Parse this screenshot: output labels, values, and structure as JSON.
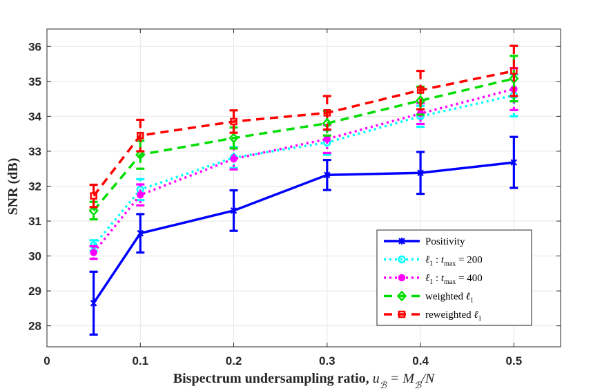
{
  "chart_data": {
    "type": "line",
    "title": "",
    "xlabel": "Bispectrum undersampling ratio,",
    "xlabel_math": "u_B = M_B/N",
    "ylabel": "SNR (dB)",
    "xlim": [
      0,
      0.55
    ],
    "ylim": [
      27.4,
      36.5
    ],
    "xticks": [
      0,
      0.1,
      0.2,
      0.3,
      0.4,
      0.5
    ],
    "xtick_labels": [
      "0",
      "0.1",
      "0.2",
      "0.3",
      "0.4",
      "0.5"
    ],
    "yticks": [
      28,
      29,
      30,
      31,
      32,
      33,
      34,
      35,
      36
    ],
    "ytick_labels": [
      "28",
      "29",
      "30",
      "31",
      "32",
      "33",
      "34",
      "35",
      "36"
    ],
    "grid": true,
    "legend_position": "bottom-right",
    "x": [
      0.05,
      0.1,
      0.2,
      0.3,
      0.4,
      0.5
    ],
    "series": [
      {
        "name": "Positivity",
        "color": "#0000ff",
        "line_style": "solid",
        "marker": "star",
        "values": [
          28.65,
          30.65,
          31.3,
          32.32,
          32.38,
          32.68
        ],
        "errors": [
          0.9,
          0.55,
          0.58,
          0.43,
          0.6,
          0.73
        ]
      },
      {
        "name": "ℓ1 : tmax = 200",
        "legend_parts": [
          "ℓ",
          "1",
          " : ",
          "t",
          "max",
          " = 200"
        ],
        "color": "#00ffff",
        "line_style": "dotted",
        "marker": "circle",
        "values": [
          30.3,
          31.9,
          32.82,
          33.25,
          34.0,
          34.6
        ],
        "errors": [
          0.15,
          0.3,
          0.3,
          0.35,
          0.3,
          0.6
        ]
      },
      {
        "name": "ℓ1 : tmax = 400",
        "legend_parts": [
          "ℓ",
          "1",
          " : ",
          "t",
          "max",
          " = 400"
        ],
        "color": "#ff00ff",
        "line_style": "dotted",
        "marker": "filled-circle",
        "values": [
          30.1,
          31.75,
          32.78,
          33.35,
          34.08,
          34.78
        ],
        "errors": [
          0.18,
          0.3,
          0.3,
          0.4,
          0.3,
          0.6
        ]
      },
      {
        "name": "weighted ℓ1",
        "legend_parts": [
          "weighted ",
          "ℓ",
          "1"
        ],
        "color": "#00dd00",
        "line_style": "dashed",
        "marker": "diamond",
        "values": [
          31.3,
          32.9,
          33.38,
          33.8,
          34.45,
          35.08
        ],
        "errors": [
          0.25,
          0.4,
          0.3,
          0.35,
          0.4,
          0.65
        ]
      },
      {
        "name": "reweighted ℓ1",
        "legend_parts": [
          "reweighted ",
          "ℓ",
          "1"
        ],
        "color": "#ff0000",
        "line_style": "dashed",
        "marker": "square",
        "values": [
          31.72,
          33.45,
          33.85,
          34.1,
          34.75,
          35.3
        ],
        "errors": [
          0.32,
          0.45,
          0.32,
          0.48,
          0.55,
          0.72
        ]
      }
    ]
  }
}
